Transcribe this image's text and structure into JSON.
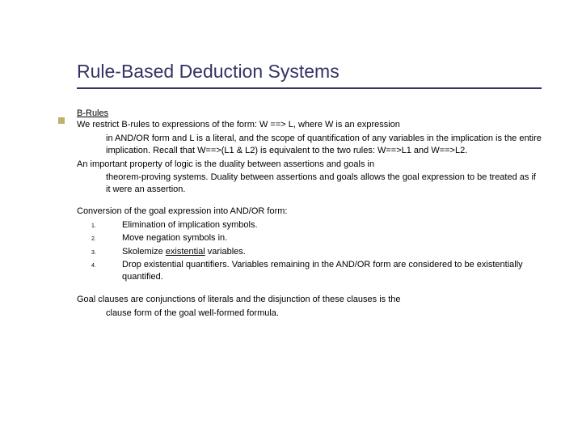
{
  "title": "Rule-Based Deduction Systems",
  "section_heading": "B-Rules",
  "para1_line1": "We restrict B-rules to expressions of the form:  W ==> L, where W is an expression",
  "para1_rest": "in AND/OR form and L is a literal, and the scope of quantification of any variables in the implication is the entire implication. Recall that W==>(L1 & L2) is equivalent to the two rules: W==>L1 and W==>L2.",
  "para2_line1": "An important property of logic is the duality between assertions and goals in",
  "para2_rest": "theorem-proving systems. Duality between assertions and goals allows the goal expression to be treated as if it were an assertion.",
  "conversion_heading": "Conversion of the goal expression into AND/OR form:",
  "steps": [
    {
      "num": "1.",
      "text": "Elimination of implication symbols."
    },
    {
      "num": "2.",
      "text": "Move negation symbols in."
    },
    {
      "num": "3.",
      "pre": "Skolemize ",
      "underlined": "existential",
      "post": " variables."
    },
    {
      "num": "4.",
      "text": "Drop existential quantifiers. Variables remaining in the AND/OR form are considered to be existentially quantified."
    }
  ],
  "closing_line1": "Goal clauses are conjunctions of literals and the disjunction of these clauses is the",
  "closing_rest": "clause form of the goal well-formed formula.",
  "colors": {
    "title": "#333366",
    "text": "#000000",
    "accent": "#c0b070",
    "background": "#ffffff"
  },
  "fonts": {
    "title_size": 23,
    "body_size": 11,
    "listnum_size": 7
  }
}
